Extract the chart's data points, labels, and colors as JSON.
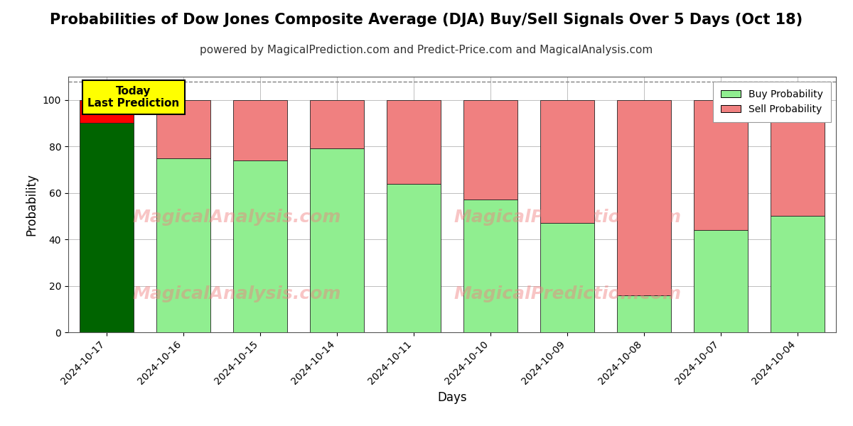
{
  "title": "Probabilities of Dow Jones Composite Average (DJA) Buy/Sell Signals Over 5 Days (Oct 18)",
  "subtitle": "powered by MagicalPrediction.com and Predict-Price.com and MagicalAnalysis.com",
  "xlabel": "Days",
  "ylabel": "Probability",
  "categories": [
    "2024-10-17",
    "2024-10-16",
    "2024-10-15",
    "2024-10-14",
    "2024-10-11",
    "2024-10-10",
    "2024-10-09",
    "2024-10-08",
    "2024-10-07",
    "2024-10-04"
  ],
  "buy_values": [
    90,
    75,
    74,
    79,
    64,
    57,
    47,
    16,
    44,
    50
  ],
  "sell_values": [
    10,
    25,
    26,
    21,
    36,
    43,
    53,
    84,
    56,
    50
  ],
  "today_buy_color": "#006400",
  "today_sell_color": "#FF0000",
  "buy_color": "#90EE90",
  "sell_color": "#F08080",
  "bar_edge_color": "#222222",
  "ylim": [
    0,
    110
  ],
  "yticks": [
    0,
    20,
    40,
    60,
    80,
    100
  ],
  "dashed_line_y": 108,
  "watermark1_text": "MagicalAnalysis.com",
  "watermark2_text": "MagicalPrediction.com",
  "today_label_text": "Today\nLast Prediction",
  "today_label_bg": "#FFFF00",
  "legend_buy_label": "Buy Probability",
  "legend_sell_label": "Sell Probability",
  "title_fontsize": 15,
  "subtitle_fontsize": 11,
  "label_fontsize": 12,
  "tick_fontsize": 10,
  "legend_fontsize": 10,
  "fig_width": 12,
  "fig_height": 6
}
